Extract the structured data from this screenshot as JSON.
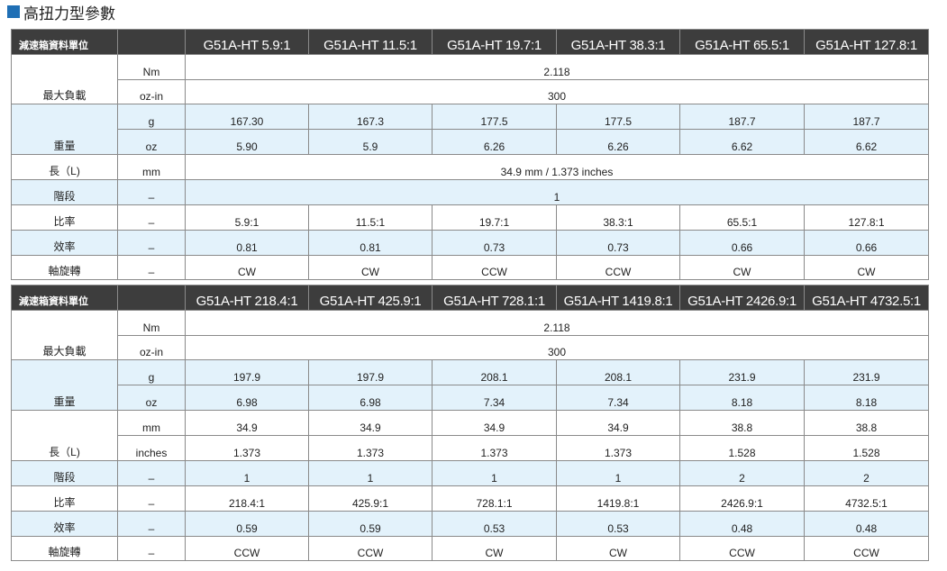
{
  "title": "高扭力型參數",
  "header_label": "減速箱資料單位",
  "table1": {
    "models": [
      "G51A-HT 5.9:1",
      "G51A-HT 11.5:1",
      "G51A-HT 19.7:1",
      "G51A-HT 38.3:1",
      "G51A-HT 65.5:1",
      "G51A-HT 127.8:1"
    ],
    "max_load": {
      "label": "最大負載",
      "unit1": "Nm",
      "value1": "2.118",
      "unit2": "oz-in",
      "value2": "300"
    },
    "weight": {
      "label": "重量",
      "unit1": "g",
      "values1": [
        "167.30",
        "167.3",
        "177.5",
        "177.5",
        "187.7",
        "187.7"
      ],
      "unit2": "oz",
      "values2": [
        "5.90",
        "5.9",
        "6.26",
        "6.26",
        "6.62",
        "6.62"
      ]
    },
    "length": {
      "label": "長（L)",
      "unit": "mm",
      "value": "34.9 mm / 1.373 inches"
    },
    "stage": {
      "label": "階段",
      "unit": "–",
      "value": "1"
    },
    "ratio": {
      "label": "比率",
      "unit": "–",
      "values": [
        "5.9:1",
        "11.5:1",
        "19.7:1",
        "38.3:1",
        "65.5:1",
        "127.8:1"
      ]
    },
    "efficiency": {
      "label": "效率",
      "unit": "–",
      "values": [
        "0.81",
        "0.81",
        "0.73",
        "0.73",
        "0.66",
        "0.66"
      ]
    },
    "rotation": {
      "label": "軸旋轉",
      "unit": "–",
      "values": [
        "CW",
        "CW",
        "CCW",
        "CCW",
        "CW",
        "CW"
      ]
    }
  },
  "table2": {
    "models": [
      "G51A-HT 218.4:1",
      "G51A-HT 425.9:1",
      "G51A-HT 728.1:1",
      "G51A-HT 1419.8:1",
      "G51A-HT 2426.9:1",
      "G51A-HT 4732.5:1"
    ],
    "max_load": {
      "label": "最大負載",
      "unit1": "Nm",
      "value1": "2.118",
      "unit2": "oz-in",
      "value2": "300"
    },
    "weight": {
      "label": "重量",
      "unit1": "g",
      "values1": [
        "197.9",
        "197.9",
        "208.1",
        "208.1",
        "231.9",
        "231.9"
      ],
      "unit2": "oz",
      "values2": [
        "6.98",
        "6.98",
        "7.34",
        "7.34",
        "8.18",
        "8.18"
      ]
    },
    "length": {
      "label": "長（L)",
      "unit1": "mm",
      "values1": [
        "34.9",
        "34.9",
        "34.9",
        "34.9",
        "38.8",
        "38.8"
      ],
      "unit2": "inches",
      "values2": [
        "1.373",
        "1.373",
        "1.373",
        "1.373",
        "1.528",
        "1.528"
      ]
    },
    "stage": {
      "label": "階段",
      "unit": "–",
      "values": [
        "1",
        "1",
        "1",
        "1",
        "2",
        "2"
      ]
    },
    "ratio": {
      "label": "比率",
      "unit": "–",
      "values": [
        "218.4:1",
        "425.9:1",
        "728.1:1",
        "1419.8:1",
        "2426.9:1",
        "4732.5:1"
      ]
    },
    "efficiency": {
      "label": "效率",
      "unit": "–",
      "values": [
        "0.59",
        "0.59",
        "0.53",
        "0.53",
        "0.48",
        "0.48"
      ]
    },
    "rotation": {
      "label": "軸旋轉",
      "unit": "–",
      "values": [
        "CCW",
        "CCW",
        "CW",
        "CW",
        "CCW",
        "CCW"
      ]
    }
  },
  "colors": {
    "header_bg": "#3d3d3d",
    "row_blue": "#e3f2fb",
    "title_square": "#1f6fb5"
  }
}
